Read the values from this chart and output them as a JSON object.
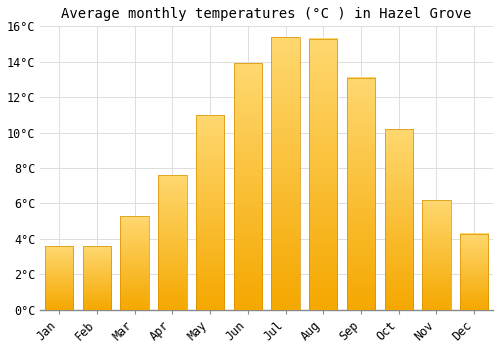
{
  "title": "Average monthly temperatures (°C ) in Hazel Grove",
  "months": [
    "Jan",
    "Feb",
    "Mar",
    "Apr",
    "May",
    "Jun",
    "Jul",
    "Aug",
    "Sep",
    "Oct",
    "Nov",
    "Dec"
  ],
  "temperatures": [
    3.6,
    3.6,
    5.3,
    7.6,
    11.0,
    13.9,
    15.4,
    15.3,
    13.1,
    10.2,
    6.2,
    4.3
  ],
  "bar_color_bottom": "#F5A800",
  "bar_color_top": "#FFD870",
  "bar_edge_color": "#D49000",
  "background_color": "#FFFFFF",
  "grid_color": "#DDDDDD",
  "ylim": [
    0,
    16
  ],
  "yticks": [
    0,
    2,
    4,
    6,
    8,
    10,
    12,
    14,
    16
  ],
  "title_fontsize": 10,
  "tick_fontsize": 8.5,
  "font_family": "monospace",
  "bar_width": 0.75
}
